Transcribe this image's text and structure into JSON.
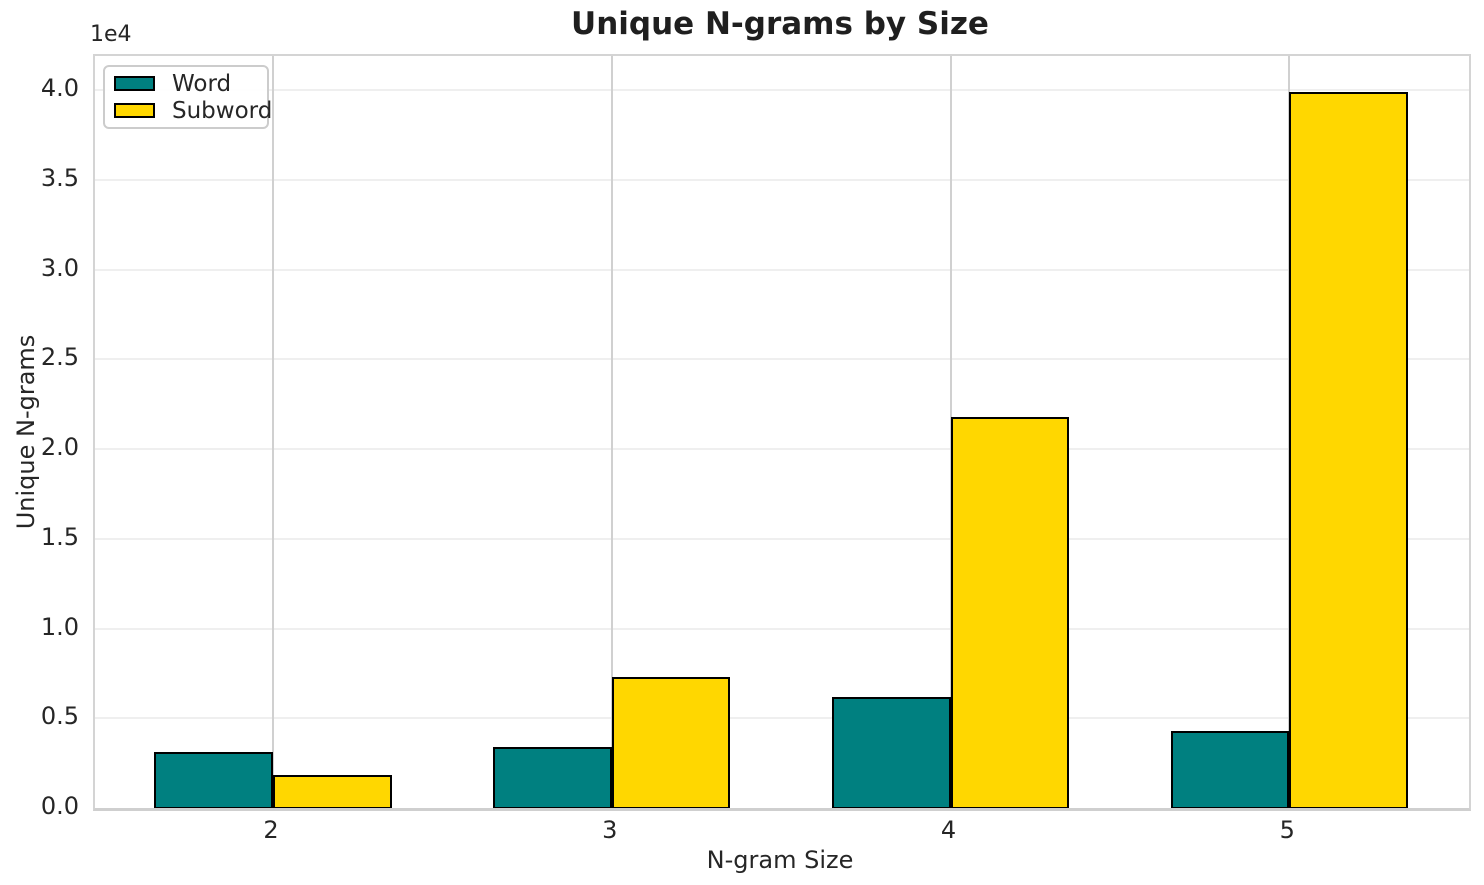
{
  "chart_data": {
    "type": "bar",
    "title": "Unique N-grams by Size",
    "xlabel": "N-gram Size",
    "ylabel": "Unique N-grams",
    "y_offset_text": "1e4",
    "categories": [
      "2",
      "3",
      "4",
      "5"
    ],
    "x_values": [
      2,
      3,
      4,
      5
    ],
    "series": [
      {
        "name": "Word",
        "color": "#008080",
        "values": [
          3100,
          3400,
          6200,
          4300
        ]
      },
      {
        "name": "Subword",
        "color": "#FFD700",
        "values": [
          1850,
          7300,
          21800,
          39900
        ]
      }
    ],
    "bar_edge_color": "#000000",
    "bar_width_data_units": 0.35,
    "ylim": [
      0,
      41900
    ],
    "yticks": [
      {
        "label": "0.0",
        "value": 0
      },
      {
        "label": "0.5",
        "value": 5000
      },
      {
        "label": "1.0",
        "value": 10000
      },
      {
        "label": "1.5",
        "value": 15000
      },
      {
        "label": "2.0",
        "value": 20000
      },
      {
        "label": "2.5",
        "value": 25000
      },
      {
        "label": "3.0",
        "value": 30000
      },
      {
        "label": "3.5",
        "value": 35000
      },
      {
        "label": "4.0",
        "value": 40000
      }
    ],
    "grid": true,
    "legend_position": "upper-left",
    "grid_h_color": "#efefef",
    "grid_v_color": "#d0d0d0"
  }
}
